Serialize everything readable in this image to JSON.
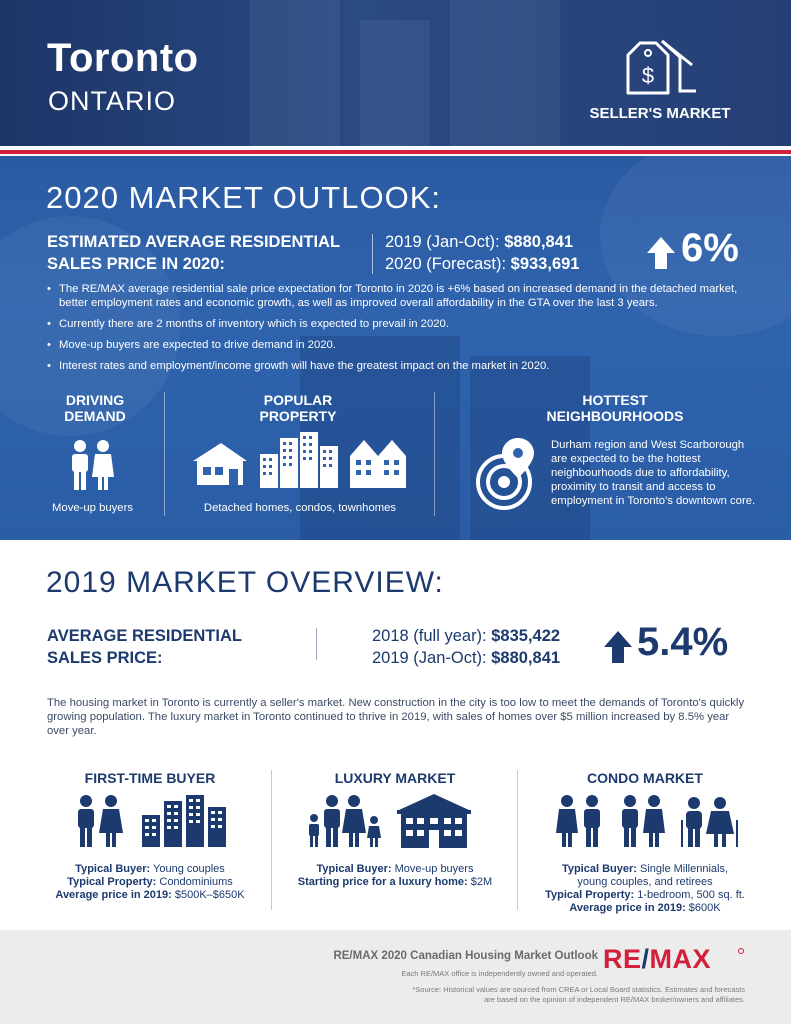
{
  "header": {
    "city": "Toronto",
    "province": "ONTARIO",
    "market_type": "SELLER'S MARKET",
    "market_icon": "house-price-tag-icon"
  },
  "outlook": {
    "title": "2020 MARKET OUTLOOK:",
    "estimate_label_line1": "ESTIMATED AVERAGE RESIDENTIAL",
    "estimate_label_line2": "SALES PRICE IN 2020:",
    "price_2019_label": "2019 (Jan-Oct):",
    "price_2019_value": "$880,841",
    "price_2020_label": "2020 (Forecast):",
    "price_2020_value": "$933,691",
    "change": "6%",
    "bullets": [
      "The RE/MAX average residential sale price expectation for Toronto in 2020 is +6% based on increased demand in the detached market, better employment rates and economic growth, as well as improved overall affordability in the GTA over the last 3 years.",
      "Currently there are 2 months of inventory which is expected to prevail in 2020.",
      "Move-up buyers are expected to drive demand in 2020.",
      "Interest rates and employment/income growth will have the greatest impact on the market in 2020."
    ],
    "driving_demand": {
      "line1": "DRIVING",
      "line2": "DEMAND",
      "caption": "Move-up buyers"
    },
    "popular_property": {
      "line1": "POPULAR",
      "line2": "PROPERTY",
      "caption": "Detached homes, condos, townhomes"
    },
    "hottest": {
      "line1": "HOTTEST",
      "line2": "NEIGHBOURHOODS",
      "text": "Durham region and West Scarborough are expected to be the hottest neighbourhoods due to affordability, proximity to transit and access to employment in Toronto's downtown core."
    }
  },
  "overview": {
    "title": "2019 MARKET OVERVIEW:",
    "avg_label_line1": "AVERAGE RESIDENTIAL",
    "avg_label_line2": "SALES PRICE:",
    "price_2018_label": "2018 (full year):",
    "price_2018_value": "$835,422",
    "price_2019_label": "2019 (Jan-Oct):",
    "price_2019_value": "$880,841",
    "change": "5.4%",
    "paragraph": "The housing market in Toronto is currently a seller's market. New construction in the city is too low to meet the demands of Toronto's quickly growing population. The luxury market in Toronto continued to thrive in 2019, with sales of homes over $5 million increased by 8.5% year over year."
  },
  "markets": [
    {
      "title": "FIRST-TIME BUYER",
      "lines": [
        {
          "label": "Typical Buyer:",
          "value": " Young couples"
        },
        {
          "label": "Typical Property:",
          "value": " Condominiums"
        },
        {
          "label": "Average price in 2019:",
          "value": " $500K–$650K"
        }
      ]
    },
    {
      "title": "LUXURY MARKET",
      "lines": [
        {
          "label": "Typical Buyer:",
          "value": " Move-up buyers"
        },
        {
          "label": "Starting price for a luxury home:",
          "value": " $2M"
        }
      ]
    },
    {
      "title": "CONDO MARKET",
      "lines": [
        {
          "label": "Typical Buyer:",
          "value": " Single Millennials,"
        },
        {
          "label": "",
          "value": "young couples, and retirees"
        },
        {
          "label": "Typical Property:",
          "value": " 1-bedroom, 500 sq. ft."
        },
        {
          "label": "Average price in 2019:",
          "value": " $600K"
        }
      ]
    }
  ],
  "footer": {
    "title": "RE/MAX 2020 Canadian Housing Market Outlook",
    "subtitle": "Each RE/MAX office is independently owned and operated.",
    "source_line1": "*Source: Historical values are sourced from CREA or Local Board statistics. Estimates and forecasts",
    "source_line2": "are based on the opinion of independent RE/MAX broker/owners and affiliates.",
    "logo_left": "RE",
    "logo_slash": "/",
    "logo_right": "MAX"
  },
  "colors": {
    "navy": "#1c3a6e",
    "blue": "#2f63ad",
    "red": "#d21f3a"
  }
}
